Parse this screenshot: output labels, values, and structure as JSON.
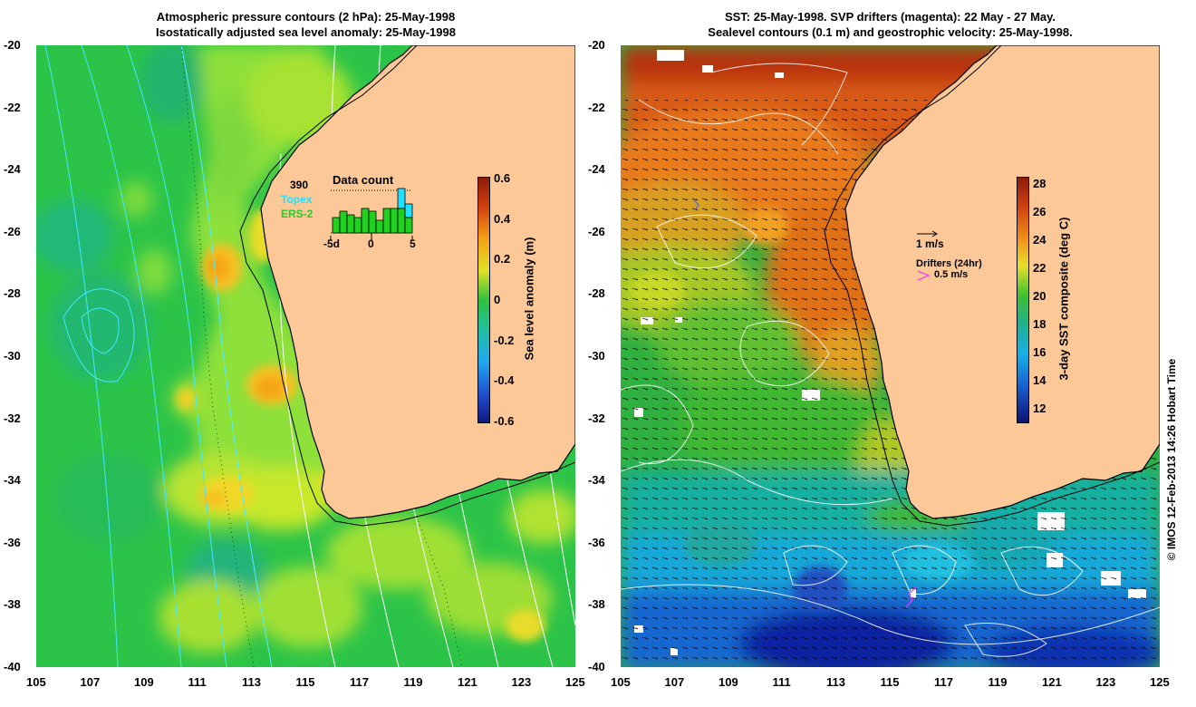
{
  "left_panel": {
    "title_line1": "Atmospheric pressure contours (2 hPa): 25-May-1998",
    "title_line2": "Isostatically adjusted sea level anomaly: 25-May-1998",
    "colorbar": {
      "label": "Sea level anomaly (m)",
      "ticks": [
        "0.6",
        "0.4",
        "0.2",
        "0",
        "-0.2",
        "-0.4",
        "-0.6"
      ],
      "range": [
        -0.6,
        0.6
      ]
    },
    "inset": {
      "title": "Data count",
      "max_count": "390",
      "legend_topex": "Topex",
      "legend_ers2": "ERS-2",
      "x_ticks": [
        "-5d",
        "0",
        "5"
      ],
      "topex_color": "#20e0ff",
      "ers2_color": "#20d020"
    }
  },
  "right_panel": {
    "title_line1": "SST: 25-May-1998. SVP drifters (magenta): 22 May - 27 May.",
    "title_line2": "Sealevel contours (0.1 m) and geostrophic velocity: 25-May-1998.",
    "colorbar": {
      "label": "3-day SST composite (deg C)",
      "ticks": [
        "28",
        "26",
        "24",
        "22",
        "20",
        "18",
        "16",
        "14",
        "12"
      ],
      "range": [
        11,
        28.5
      ]
    },
    "velocity_scale_label": "1 m/s",
    "drifters_label": "Drifters (24hr)",
    "drifters_scale_label": "0.5 m/s",
    "drifter_color": "#ff30ff"
  },
  "axes": {
    "x_ticks": [
      "105",
      "107",
      "109",
      "111",
      "113",
      "115",
      "117",
      "119",
      "121",
      "123",
      "125"
    ],
    "y_ticks": [
      "-20",
      "-22",
      "-24",
      "-26",
      "-28",
      "-30",
      "-32",
      "-34",
      "-36",
      "-38",
      "-40"
    ],
    "lon_range": [
      105,
      125
    ],
    "lat_range": [
      -40,
      -20
    ]
  },
  "credit": "© IMOS 12-Feb-2013 14:26 Hobart Time",
  "colors": {
    "land": "#fcc898",
    "coastline": "#000000"
  }
}
